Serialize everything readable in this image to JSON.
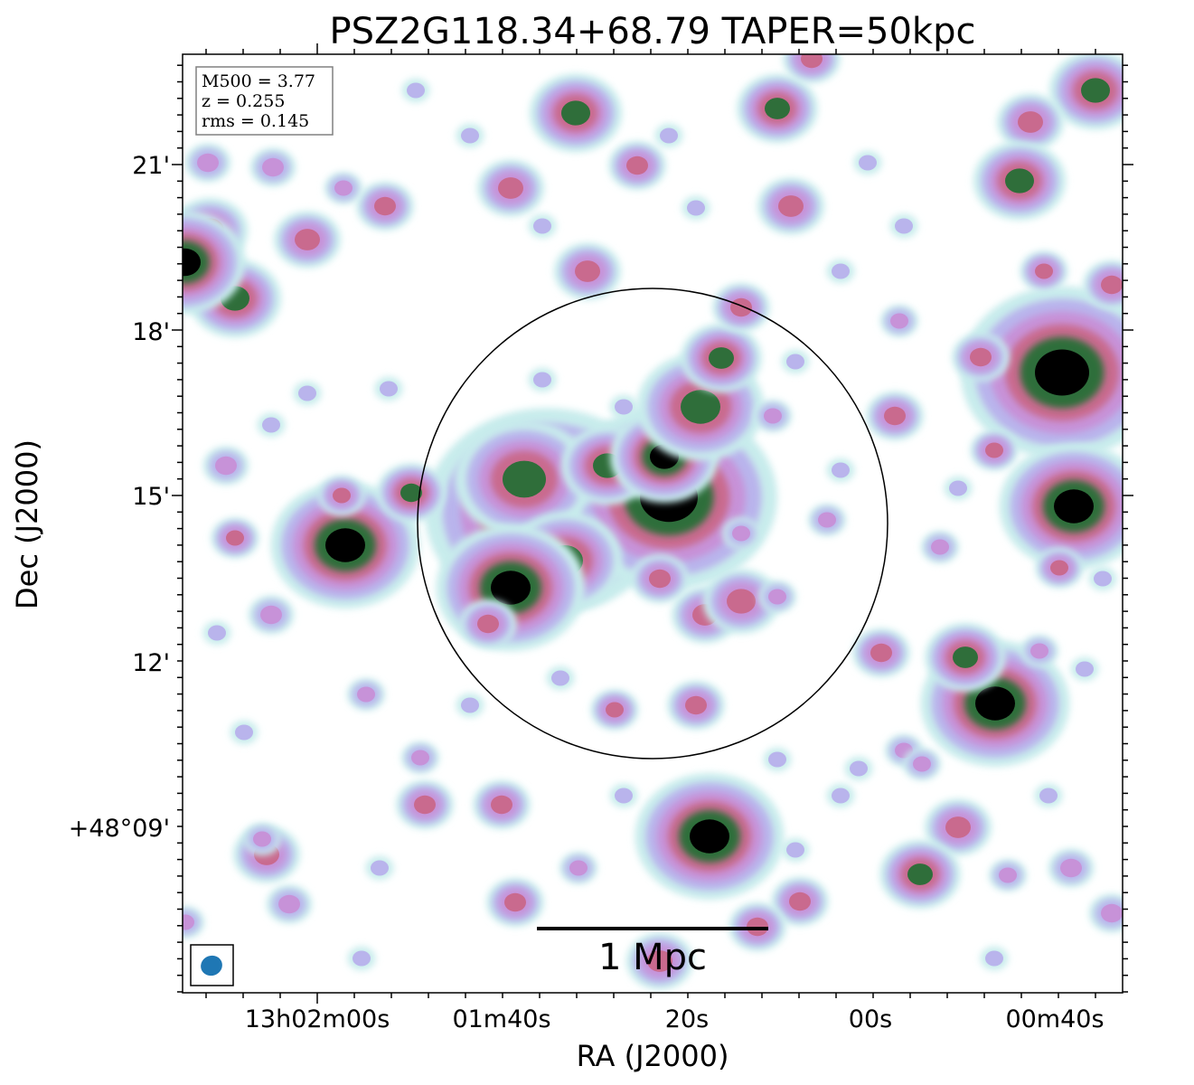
{
  "chart_data": {
    "type": "heatmap",
    "title": "PSZ2G118.34+68.79 TAPER=50kpc",
    "xlabel": "RA (J2000)",
    "ylabel": "Dec (J2000)",
    "x_ticks": [
      "13h02m00s",
      "01m40s",
      "20s",
      "00s",
      "00m40s"
    ],
    "y_ticks": [
      "+48°09'",
      "12'",
      "15'",
      "18'",
      "21'"
    ],
    "info_box": {
      "lines": [
        "M500 = 3.77",
        "z = 0.255",
        "rms = 0.145"
      ]
    },
    "scalebar_label": "1 Mpc",
    "colormap": [
      "#ffffff",
      "#c8ecec",
      "#b9b4ec",
      "#c792d8",
      "#c96a8e",
      "#2f6e3a",
      "#000000"
    ],
    "beam_color": "#1f77b4",
    "circle_color": "#000000",
    "grid": false
  }
}
